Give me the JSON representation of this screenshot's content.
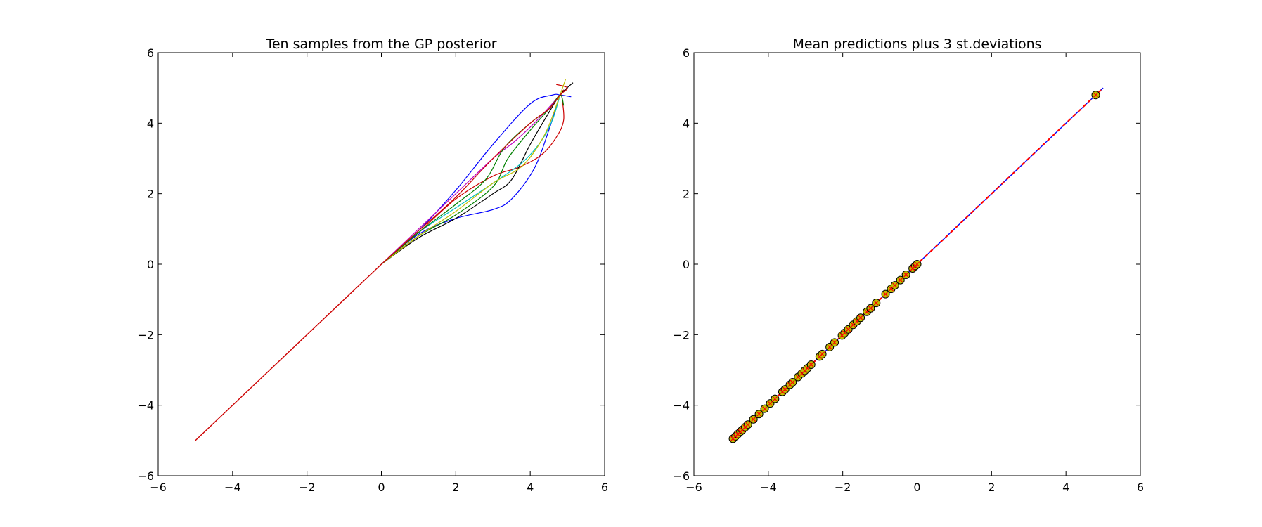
{
  "chart_data": [
    {
      "type": "line",
      "title": "Ten samples from the GP posterior",
      "xlabel": "",
      "ylabel": "",
      "xlim": [
        -6,
        6
      ],
      "ylim": [
        -6,
        6
      ],
      "xticks": [
        -6,
        -4,
        -2,
        0,
        2,
        4,
        6
      ],
      "yticks": [
        -6,
        -4,
        -2,
        0,
        2,
        4,
        6
      ],
      "xtick_labels": [
        "−6",
        "−4",
        "−2",
        "0",
        "2",
        "4",
        "6"
      ],
      "ytick_labels": [
        "−6",
        "−4",
        "−2",
        "0",
        "2",
        "4",
        "6"
      ],
      "grid": false,
      "shared_segment": {
        "from": [
          -5,
          -5
        ],
        "to": [
          0,
          0
        ],
        "color": "#cc0000"
      },
      "series": [
        {
          "color": "#0000ff",
          "points": [
            [
              0,
              0
            ],
            [
              1,
              0.95
            ],
            [
              2,
              2.1
            ],
            [
              3,
              3.4
            ],
            [
              4,
              4.55
            ],
            [
              4.6,
              4.8
            ],
            [
              4.8,
              4.8
            ],
            [
              5.1,
              4.75
            ]
          ]
        },
        {
          "color": "#0000ff",
          "points": [
            [
              0,
              0
            ],
            [
              1,
              0.85
            ],
            [
              2,
              1.3
            ],
            [
              3,
              1.55
            ],
            [
              3.5,
              1.85
            ],
            [
              4.1,
              2.7
            ],
            [
              4.5,
              3.8
            ],
            [
              4.8,
              4.8
            ]
          ]
        },
        {
          "color": "#cc0000",
          "points": [
            [
              0,
              0
            ],
            [
              1,
              0.9
            ],
            [
              2,
              1.85
            ],
            [
              3,
              2.5
            ],
            [
              3.7,
              2.75
            ],
            [
              4.3,
              3.1
            ],
            [
              4.7,
              3.6
            ],
            [
              4.9,
              4.1
            ],
            [
              4.85,
              4.8
            ],
            [
              4.9,
              4.95
            ]
          ]
        },
        {
          "color": "#000000",
          "points": [
            [
              0,
              0
            ],
            [
              1,
              0.75
            ],
            [
              2,
              1.3
            ],
            [
              3,
              2.0
            ],
            [
              3.5,
              2.4
            ],
            [
              4,
              3.4
            ],
            [
              4.5,
              4.3
            ],
            [
              4.8,
              4.8
            ],
            [
              5.15,
              5.15
            ]
          ]
        },
        {
          "color": "#008000",
          "points": [
            [
              0,
              0
            ],
            [
              1,
              0.8
            ],
            [
              2,
              1.4
            ],
            [
              3,
              2.2
            ],
            [
              3.4,
              3.0
            ],
            [
              4,
              3.8
            ],
            [
              4.5,
              4.4
            ],
            [
              4.8,
              4.8
            ]
          ]
        },
        {
          "color": "#00bfbf",
          "points": [
            [
              0,
              0
            ],
            [
              1,
              0.9
            ],
            [
              2,
              1.6
            ],
            [
              3,
              2.3
            ],
            [
              3.8,
              2.9
            ],
            [
              4.3,
              3.5
            ],
            [
              4.6,
              4.1
            ],
            [
              4.8,
              4.8
            ]
          ]
        },
        {
          "color": "#bfbf00",
          "points": [
            [
              0,
              0
            ],
            [
              1,
              0.8
            ],
            [
              2,
              1.5
            ],
            [
              3,
              2.3
            ],
            [
              3.8,
              2.8
            ],
            [
              4.4,
              3.7
            ],
            [
              4.8,
              4.8
            ],
            [
              4.95,
              5.25
            ]
          ]
        },
        {
          "color": "#bf00bf",
          "points": [
            [
              0,
              0
            ],
            [
              1,
              1.0
            ],
            [
              2,
              2.0
            ],
            [
              3,
              3.0
            ],
            [
              3.6,
              3.5
            ],
            [
              4.2,
              4.1
            ],
            [
              4.8,
              4.8
            ]
          ]
        },
        {
          "color": "#008000",
          "points": [
            [
              0,
              0
            ],
            [
              1,
              0.9
            ],
            [
              2,
              1.7
            ],
            [
              2.8,
              2.4
            ],
            [
              3.3,
              3.3
            ],
            [
              4,
              4.0
            ],
            [
              4.5,
              4.4
            ],
            [
              4.8,
              4.8
            ],
            [
              4.9,
              4.5
            ]
          ]
        },
        {
          "color": "#cc0000",
          "points": [
            [
              0,
              0
            ],
            [
              1,
              0.95
            ],
            [
              2,
              1.9
            ],
            [
              3,
              3.0
            ],
            [
              4,
              4.0
            ],
            [
              4.5,
              4.4
            ],
            [
              4.8,
              4.8
            ],
            [
              5.0,
              5.0
            ],
            [
              4.7,
              5.1
            ]
          ]
        }
      ]
    },
    {
      "type": "line",
      "title": "Mean predictions plus 3 st.deviations",
      "xlabel": "",
      "ylabel": "",
      "xlim": [
        -6,
        6
      ],
      "ylim": [
        -6,
        6
      ],
      "xticks": [
        -6,
        -4,
        -2,
        0,
        2,
        4,
        6
      ],
      "yticks": [
        -6,
        -4,
        -2,
        0,
        2,
        4,
        6
      ],
      "xtick_labels": [
        "−6",
        "−4",
        "−2",
        "0",
        "2",
        "4",
        "6"
      ],
      "ytick_labels": [
        "−6",
        "−4",
        "−2",
        "0",
        "2",
        "4",
        "6"
      ],
      "grid": false,
      "mean_line": {
        "from": [
          -5,
          -5
        ],
        "to": [
          5,
          5
        ],
        "color": "#0000ff"
      },
      "std_band": {
        "from": [
          -5,
          -5
        ],
        "to": [
          5,
          5
        ],
        "color": "#ff0000",
        "style": "dashed"
      },
      "training_points": {
        "face_color": "#bfbf00",
        "edge_color": "#000000",
        "x": [
          -4.95,
          -4.88,
          -4.82,
          -4.75,
          -4.7,
          -4.62,
          -4.55,
          -4.4,
          -4.25,
          -4.1,
          -3.95,
          -3.82,
          -3.62,
          -3.55,
          -3.42,
          -3.35,
          -3.2,
          -3.1,
          -3.02,
          -2.95,
          -2.85,
          -2.62,
          -2.55,
          -2.35,
          -2.22,
          -2.02,
          -1.95,
          -1.85,
          -1.72,
          -1.62,
          -1.52,
          -1.35,
          -1.25,
          -1.1,
          -0.85,
          -0.7,
          -0.6,
          -0.45,
          -0.3,
          -0.12,
          -0.05,
          0.0,
          4.8
        ]
      }
    }
  ]
}
